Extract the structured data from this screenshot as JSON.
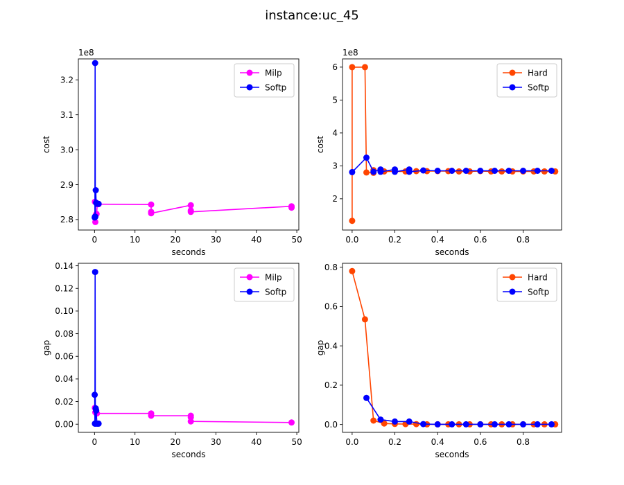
{
  "figure": {
    "suptitle": "instance:uc_45"
  },
  "chart_data": [
    {
      "type": "line",
      "xlabel": "seconds",
      "ylabel": "cost",
      "offset_text": "1e8",
      "xlim": [
        -4,
        50.5
      ],
      "ylim": [
        2.77,
        3.26
      ],
      "xticks": [
        0,
        10,
        20,
        30,
        40,
        50
      ],
      "xtick_labels": [
        "0",
        "10",
        "20",
        "30",
        "40",
        "50"
      ],
      "yticks": [
        2.8,
        2.9,
        3.0,
        3.1,
        3.2
      ],
      "ytick_labels": [
        "2.8",
        "2.9",
        "3.0",
        "3.1",
        "3.2"
      ],
      "grid": false,
      "legend_position": "top-right",
      "series": [
        {
          "name": "Milp",
          "color": "#ff00ff",
          "points": [
            [
              0.1,
              2.851
            ],
            [
              0.2,
              2.793
            ],
            [
              0.35,
              2.814
            ],
            [
              0.5,
              2.816
            ],
            [
              0.7,
              2.844
            ],
            [
              1.0,
              2.844
            ],
            [
              14,
              2.843
            ],
            [
              14,
              2.822
            ],
            [
              14,
              2.818
            ],
            [
              23.8,
              2.841
            ],
            [
              23.8,
              2.826
            ],
            [
              23.8,
              2.822
            ],
            [
              48.7,
              2.838
            ],
            [
              48.7,
              2.834
            ]
          ]
        },
        {
          "name": "Softp",
          "color": "#0000ff",
          "points": [
            [
              0.05,
              2.806
            ],
            [
              0.1,
              2.808
            ],
            [
              0.15,
              3.248
            ],
            [
              0.2,
              2.808
            ],
            [
              0.3,
              2.884
            ],
            [
              0.4,
              2.848
            ],
            [
              0.55,
              2.846
            ],
            [
              0.8,
              2.845
            ],
            [
              1.0,
              2.845
            ]
          ]
        }
      ]
    },
    {
      "type": "line",
      "xlabel": "seconds",
      "ylabel": "cost",
      "offset_text": "1e8",
      "xlim": [
        -0.045,
        0.98
      ],
      "ylim": [
        1.05,
        6.25
      ],
      "xticks": [
        0,
        0.2,
        0.4,
        0.6,
        0.8
      ],
      "xtick_labels": [
        "0.0",
        "0.2",
        "0.4",
        "0.6",
        "0.8"
      ],
      "yticks": [
        2,
        3,
        4,
        5,
        6
      ],
      "ytick_labels": [
        "2",
        "3",
        "4",
        "5",
        "6"
      ],
      "grid": false,
      "legend_position": "top-right",
      "series": [
        {
          "name": "Hard",
          "color": "#ff4500",
          "points": [
            [
              0,
              1.33
            ],
            [
              0,
              6.0
            ],
            [
              0.06,
              6.0
            ],
            [
              0.067,
              2.8
            ],
            [
              0.1,
              2.79
            ],
            [
              0.1,
              2.87
            ],
            [
              0.133,
              2.84
            ],
            [
              0.15,
              2.83
            ],
            [
              0.2,
              2.83
            ],
            [
              0.25,
              2.83
            ],
            [
              0.3,
              2.84
            ],
            [
              0.35,
              2.84
            ],
            [
              0.4,
              2.84
            ],
            [
              0.45,
              2.84
            ],
            [
              0.5,
              2.83
            ],
            [
              0.55,
              2.83
            ],
            [
              0.6,
              2.84
            ],
            [
              0.65,
              2.83
            ],
            [
              0.7,
              2.83
            ],
            [
              0.75,
              2.83
            ],
            [
              0.8,
              2.83
            ],
            [
              0.85,
              2.83
            ],
            [
              0.9,
              2.83
            ],
            [
              0.95,
              2.83
            ]
          ]
        },
        {
          "name": "Softp",
          "color": "#0000ff",
          "points": [
            [
              0,
              2.81
            ],
            [
              0.067,
              3.25
            ],
            [
              0.1,
              2.82
            ],
            [
              0.133,
              2.89
            ],
            [
              0.133,
              2.82
            ],
            [
              0.2,
              2.89
            ],
            [
              0.2,
              2.82
            ],
            [
              0.267,
              2.89
            ],
            [
              0.267,
              2.82
            ],
            [
              0.333,
              2.86
            ],
            [
              0.4,
              2.85
            ],
            [
              0.467,
              2.85
            ],
            [
              0.533,
              2.85
            ],
            [
              0.6,
              2.85
            ],
            [
              0.667,
              2.85
            ],
            [
              0.733,
              2.85
            ],
            [
              0.8,
              2.85
            ],
            [
              0.867,
              2.85
            ],
            [
              0.933,
              2.85
            ]
          ]
        }
      ]
    },
    {
      "type": "line",
      "xlabel": "seconds",
      "ylabel": "gap",
      "offset_text": "",
      "xlim": [
        -4,
        50.5
      ],
      "ylim": [
        -0.0072,
        0.1422
      ],
      "xticks": [
        0,
        10,
        20,
        30,
        40,
        50
      ],
      "xtick_labels": [
        "0",
        "10",
        "20",
        "30",
        "40",
        "50"
      ],
      "yticks": [
        0,
        0.02,
        0.04,
        0.06,
        0.08,
        0.1,
        0.12,
        0.14
      ],
      "ytick_labels": [
        "0.00",
        "0.02",
        "0.04",
        "0.06",
        "0.08",
        "0.10",
        "0.12",
        "0.14"
      ],
      "grid": false,
      "legend_position": "top-right",
      "series": [
        {
          "name": "Milp",
          "color": "#ff00ff",
          "points": [
            [
              0.1,
              0.0145
            ],
            [
              0.2,
              0.0105
            ],
            [
              0.35,
              0.01
            ],
            [
              0.6,
              0.0095
            ],
            [
              14,
              0.0095
            ],
            [
              14,
              0.0075
            ],
            [
              23.8,
              0.0075
            ],
            [
              23.8,
              0.006
            ],
            [
              23.8,
              0.0025
            ],
            [
              48.7,
              0.0015
            ]
          ]
        },
        {
          "name": "Softp",
          "color": "#0000ff",
          "points": [
            [
              0.05,
              0.026
            ],
            [
              0.1,
              0.0005
            ],
            [
              0.15,
              0.1345
            ],
            [
              0.2,
              0.0005
            ],
            [
              0.3,
              0.014
            ],
            [
              0.4,
              0.012
            ],
            [
              0.6,
              0.0005
            ],
            [
              0.8,
              0.0005
            ],
            [
              1.0,
              0.0005
            ]
          ]
        }
      ]
    },
    {
      "type": "line",
      "xlabel": "seconds",
      "ylabel": "gap",
      "offset_text": "",
      "xlim": [
        -0.045,
        0.98
      ],
      "ylim": [
        -0.04,
        0.82
      ],
      "xticks": [
        0,
        0.2,
        0.4,
        0.6,
        0.8
      ],
      "xtick_labels": [
        "0.0",
        "0.2",
        "0.4",
        "0.6",
        "0.8"
      ],
      "yticks": [
        0,
        0.2,
        0.4,
        0.6,
        0.8
      ],
      "ytick_labels": [
        "0.0",
        "0.2",
        "0.4",
        "0.6",
        "0.8"
      ],
      "grid": false,
      "legend_position": "top-right",
      "series": [
        {
          "name": "Hard",
          "color": "#ff4500",
          "points": [
            [
              0,
              0.78
            ],
            [
              0.06,
              0.535
            ],
            [
              0.1,
              0.02
            ],
            [
              0.15,
              0.005
            ],
            [
              0.2,
              0.003
            ],
            [
              0.25,
              0.002
            ],
            [
              0.3,
              0.002
            ],
            [
              0.35,
              0.001
            ],
            [
              0.4,
              0.001
            ],
            [
              0.45,
              0.001
            ],
            [
              0.5,
              0.001
            ],
            [
              0.55,
              0.001
            ],
            [
              0.6,
              0.001
            ],
            [
              0.65,
              0.001
            ],
            [
              0.7,
              0.001
            ],
            [
              0.75,
              0.001
            ],
            [
              0.8,
              0.001
            ],
            [
              0.85,
              0.001
            ],
            [
              0.9,
              0.001
            ],
            [
              0.95,
              0.001
            ]
          ]
        },
        {
          "name": "Softp",
          "color": "#0000ff",
          "points": [
            [
              0.067,
              0.135
            ],
            [
              0.133,
              0.025
            ],
            [
              0.2,
              0.015
            ],
            [
              0.267,
              0.015
            ],
            [
              0.333,
              0.002
            ],
            [
              0.4,
              0.001
            ],
            [
              0.467,
              0.001
            ],
            [
              0.533,
              0.001
            ],
            [
              0.6,
              0.001
            ],
            [
              0.667,
              0.001
            ],
            [
              0.733,
              0.001
            ],
            [
              0.8,
              0.001
            ],
            [
              0.867,
              0.001
            ],
            [
              0.933,
              0.001
            ]
          ]
        }
      ]
    }
  ]
}
